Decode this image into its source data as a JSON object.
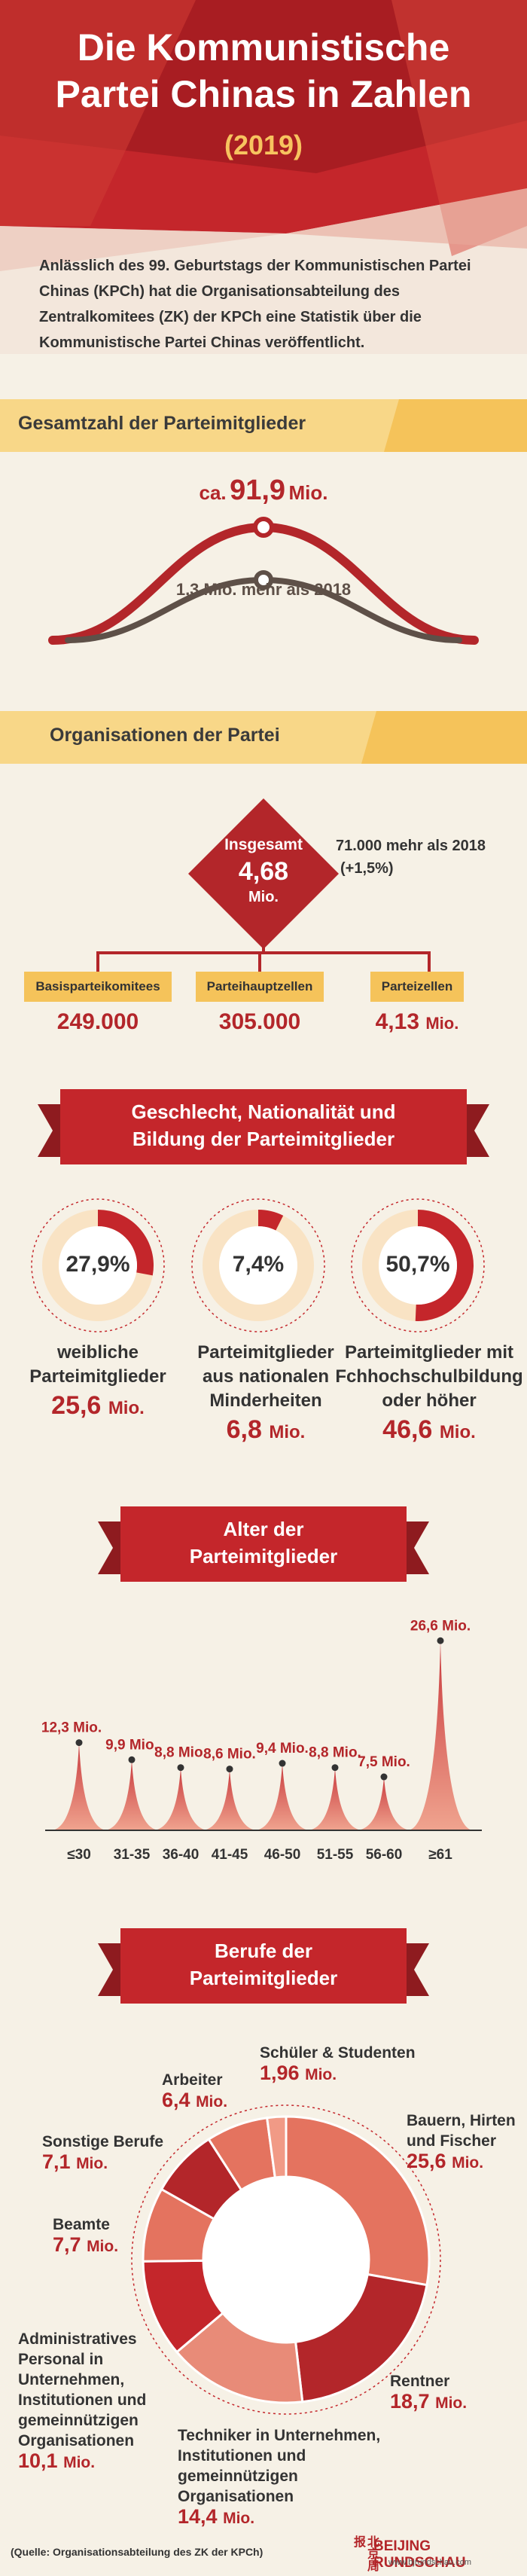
{
  "header": {
    "title_line1": "Die Kommunistische",
    "title_line2": "Partei Chinas in Zahlen",
    "year": "(2019)",
    "intro": "Anlässlich des 99. Geburtstags der Kommunistischen Partei Chinas (KPCh) hat die Organisationsabteilung des Zentralkomitees (ZK) der KPCh eine Statistik über die Kommunistische Partei Chinas veröffentlicht."
  },
  "members": {
    "section_title": "Gesamtzahl der Parteimitglieder",
    "total_prefix": "ca.",
    "total_value": "91,9",
    "total_unit": "Mio.",
    "increase_text": "1,3 Mio. mehr als 2018"
  },
  "organizations": {
    "section_title": "Organisationen der Partei",
    "total_label": "Insgesamt",
    "total_value": "4,68",
    "total_unit": "Mio.",
    "increase_line1": "71.000 mehr als 2018",
    "increase_line2": "(+1,5%)",
    "items": [
      {
        "label": "Basisparteikomitees",
        "value": "249.000",
        "unit": ""
      },
      {
        "label": "Parteihauptzellen",
        "value": "305.000",
        "unit": ""
      },
      {
        "label": "Parteizellen",
        "value": "4,13",
        "unit": "Mio."
      }
    ]
  },
  "demographics": {
    "section_line1": "Geschlecht, Nationalität und",
    "section_line2": "Bildung der Parteimitglieder",
    "items": [
      {
        "pct_label": "27,9%",
        "pct": 27.9,
        "cap1": "weibliche",
        "cap2": "Parteimitglieder",
        "cap3": "",
        "value": "25,6",
        "unit": "Mio."
      },
      {
        "pct_label": "7,4%",
        "pct": 7.4,
        "cap1": "Parteimitglieder",
        "cap2": "aus nationalen",
        "cap3": "Minderheiten",
        "value": "6,8",
        "unit": "Mio."
      },
      {
        "pct_label": "50,7%",
        "pct": 50.7,
        "cap1": "Parteimitglieder mit",
        "cap2": "Fchhochschulbildung",
        "cap3": "oder höher",
        "value": "46,6",
        "unit": "Mio."
      }
    ]
  },
  "age": {
    "section_line1": "Alter der",
    "section_line2": "Parteimitglieder"
  },
  "occupations": {
    "section_line1": "Berufe der",
    "section_line2": "Parteimitglieder"
  },
  "footer": {
    "source": "(Quelle: Organisationsabteilung des ZK der KPCh)",
    "brand": "BEIJING RUNDSCHAU",
    "brand_chinese": "北京周报",
    "url": "www.bjrundschau.com"
  },
  "colors": {
    "red": "#b3262a",
    "dark_red": "#8e1b1f",
    "yellow": "#f5c35a",
    "salmon": "#e4735f",
    "cream": "#f6f1e6"
  },
  "chart_data": [
    {
      "type": "bar",
      "title": "",
      "categories": [
        "≤30",
        "31-35",
        "36-40",
        "41-45",
        "46-50",
        "51-55",
        "56-60",
        "≥61"
      ],
      "values": [
        12.3,
        9.9,
        8.8,
        8.6,
        9.4,
        8.8,
        7.5,
        26.6
      ],
      "value_labels": [
        "12,3 Mio.",
        "9,9 Mio.",
        "8,8 Mio.",
        "8,6 Mio.",
        "9,4 Mio.",
        "8,8 Mio.",
        "7,5 Mio.",
        "26,6 Mio."
      ],
      "unit": "Mio."
    },
    {
      "type": "pie",
      "title": "",
      "labels": [
        "Bauern, Hirten und Fischer",
        "Rentner",
        "Techniker in Unternehmen, Institutionen und gemeinnützigen Organisationen",
        "Administratives Personal in Unternehmen, Institutionen und gemeinnützigen Organisationen",
        "Beamte",
        "Sonstige Berufe",
        "Arbeiter",
        "Schüler & Studenten"
      ],
      "values": [
        25.6,
        18.7,
        14.4,
        10.1,
        7.7,
        7.1,
        6.4,
        1.96
      ],
      "value_labels": [
        "25,6",
        "18,7",
        "14,4",
        "10,1",
        "7,7",
        "7,1",
        "6,4",
        "1,96"
      ],
      "unit": "Mio."
    }
  ]
}
